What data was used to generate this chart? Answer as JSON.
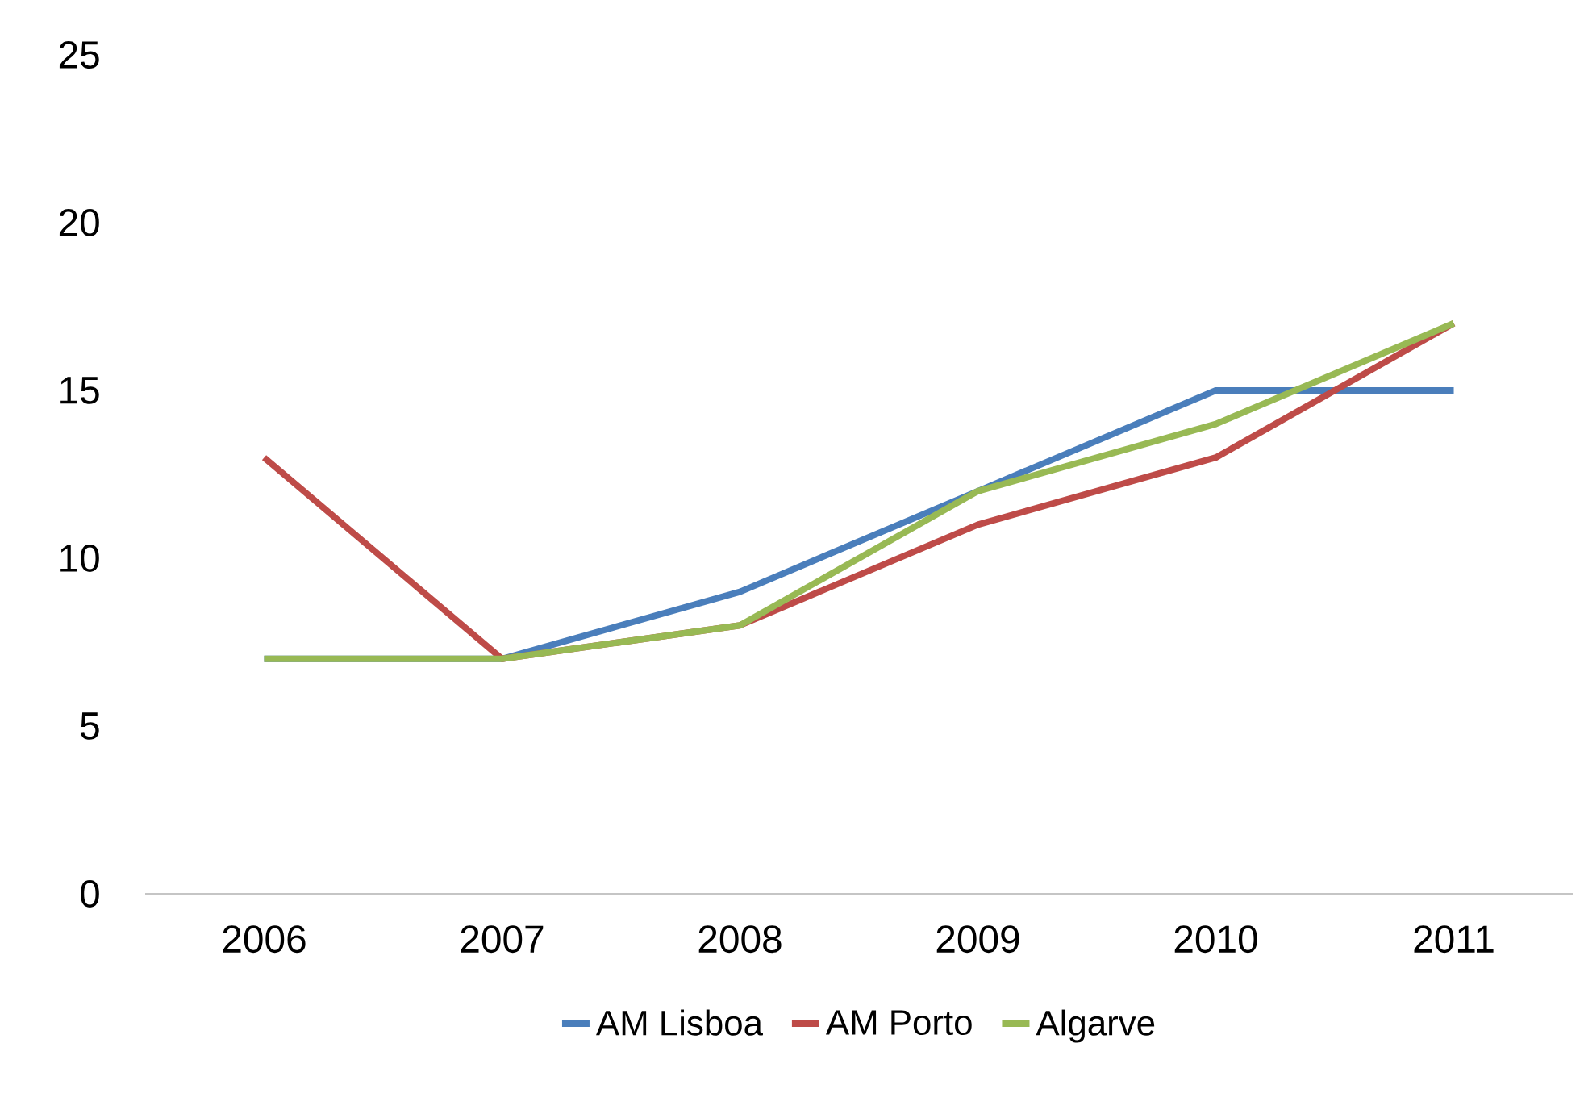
{
  "chart_data": {
    "type": "line",
    "categories": [
      "2006",
      "2007",
      "2008",
      "2009",
      "2010",
      "2011"
    ],
    "series": [
      {
        "name": "AM Lisboa",
        "color": "#4a7ebb",
        "values": [
          7,
          7,
          9,
          12,
          15,
          15
        ]
      },
      {
        "name": "AM Porto",
        "color": "#be4b48",
        "values": [
          13,
          7,
          8,
          11,
          13,
          17
        ]
      },
      {
        "name": "Algarve",
        "color": "#98b954",
        "values": [
          7,
          7,
          8,
          12,
          14,
          17
        ]
      }
    ],
    "ylim": [
      0,
      25
    ],
    "yticks": [
      0,
      5,
      10,
      15,
      20,
      25
    ],
    "grid": false,
    "legend": "bottom",
    "marker": "none",
    "line_style": "solid"
  }
}
